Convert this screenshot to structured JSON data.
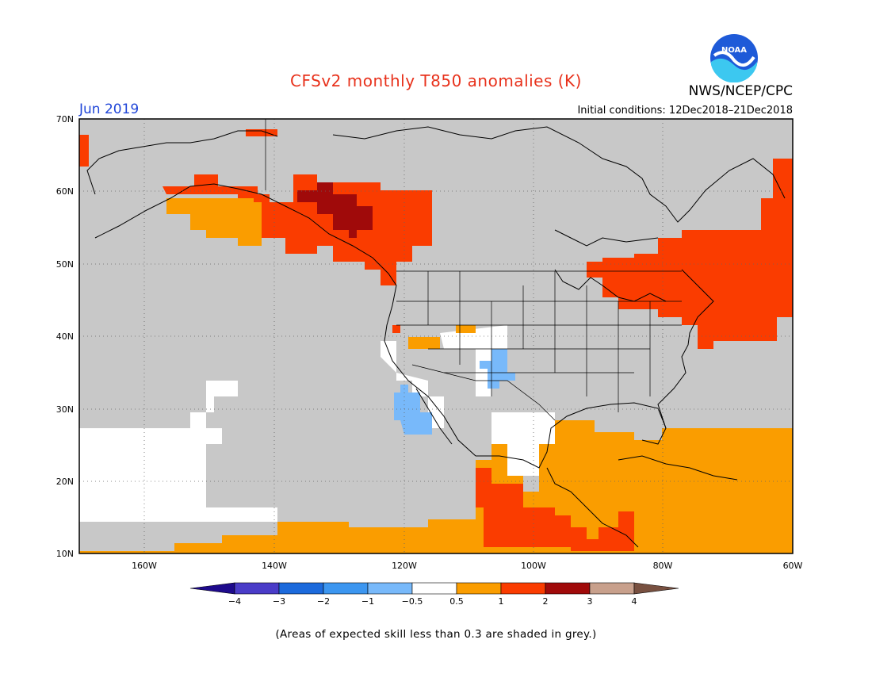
{
  "header": {
    "title": "CFSv2 monthly T850 anomalies (K)",
    "agency": "NWS/NCEP/CPC",
    "logo_text": "NOAA",
    "month": "Jun 2019",
    "initial_conditions": "Initial conditions: 12Dec2018–21Dec2018"
  },
  "map": {
    "lat_labels": [
      "70N",
      "60N",
      "50N",
      "40N",
      "30N",
      "20N",
      "10N"
    ],
    "lon_labels": [
      "160W",
      "140W",
      "120W",
      "100W",
      "80W",
      "60W"
    ],
    "background_color": "#c8c8c8"
  },
  "colorbar": {
    "ticks": [
      "−4",
      "−3",
      "−2",
      "−1",
      "−0.5",
      "0.5",
      "1",
      "2",
      "3",
      "4"
    ],
    "colors": [
      "#1e0a8c",
      "#4a3cc8",
      "#1c6adc",
      "#3c96f0",
      "#78b9fa",
      "#ffffff",
      "#fa9d00",
      "#fa3c00",
      "#a00a0a",
      "#c8a08c",
      "#785040"
    ]
  },
  "footnote": "(Areas of expected skill less than 0.3 are shaded in grey.)"
}
